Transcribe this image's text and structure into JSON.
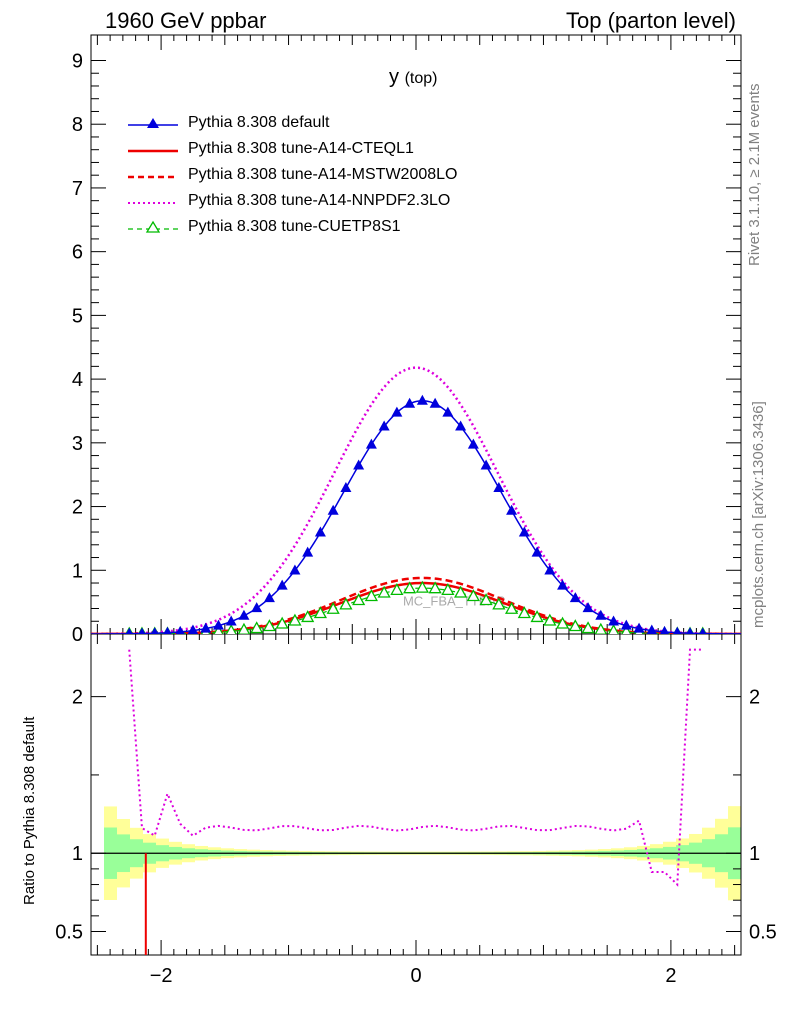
{
  "header": {
    "left": "1960 GeV ppbar",
    "right": "Top (parton level)"
  },
  "side_text": {
    "top": "Rivet 3.1.10, ≥ 2.1M events",
    "bottom": "mcplots.cern.ch [arXiv:1306.3436]"
  },
  "watermark": "MC_FBA_TTBAR",
  "chart_data": [
    {
      "type": "line",
      "title": "y",
      "title_sub": "(top)",
      "xlim": [
        -2.55,
        2.55
      ],
      "ylim": [
        0,
        9.4
      ],
      "yticks": [
        0,
        1,
        2,
        3,
        4,
        5,
        6,
        7,
        8,
        9
      ],
      "grid": false,
      "legend_position": "top-left",
      "series": [
        {
          "name": "Pythia 8.308 default",
          "color": "#0000dd",
          "style": "solid",
          "marker": "triangle-filled",
          "peak": 3.66,
          "sigma": 0.62,
          "x0": 0.05
        },
        {
          "name": "Pythia 8.308 tune-A14-CTEQL1",
          "color": "#ee0000",
          "style": "solid",
          "marker": "none",
          "peak": 0.8,
          "sigma": 0.64,
          "x0": 0.05
        },
        {
          "name": "Pythia 8.308 tune-A14-MSTW2008LO",
          "color": "#ee0000",
          "style": "dashed",
          "marker": "none",
          "peak": 0.88,
          "sigma": 0.64,
          "x0": 0.05
        },
        {
          "name": "Pythia 8.308 tune-A14-NNPDF2.3LO",
          "color": "#dd00dd",
          "style": "dotted",
          "marker": "none",
          "peak": 4.18,
          "sigma": 0.64,
          "x0": 0.0
        },
        {
          "name": "Pythia 8.308 tune-CUETP8S1",
          "color": "#00bb00",
          "style": "dashed",
          "marker": "triangle-open",
          "peak": 0.72,
          "sigma": 0.63,
          "x0": 0.05
        }
      ]
    },
    {
      "type": "line",
      "ylabel": "Ratio to Pythia 8.308 default",
      "xlim": [
        -2.55,
        2.55
      ],
      "ylim": [
        0.35,
        2.4
      ],
      "yticks": [
        0.5,
        1,
        2
      ],
      "xticks": [
        -2,
        0,
        2
      ],
      "series": [
        {
          "name": "Pythia 8.308 tune-A14-NNPDF2.3LO",
          "ratio_level": 1.16
        },
        {
          "name": "Pythia 8.308 default",
          "ratio_level": 1.0
        }
      ]
    }
  ]
}
